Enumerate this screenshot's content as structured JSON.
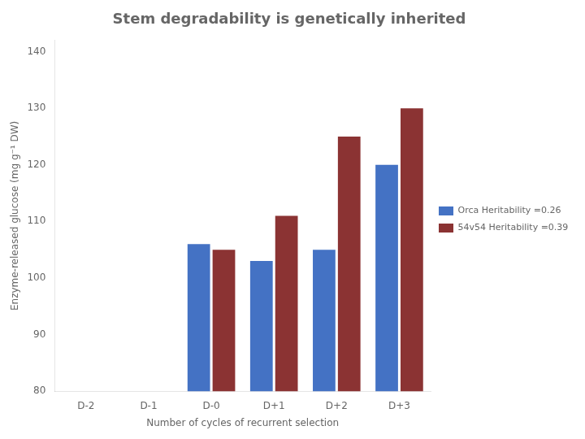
{
  "chart_data": {
    "type": "bar",
    "title": "Stem degradability is genetically inherited",
    "categories": [
      "D-2",
      "D-1",
      "D-0",
      "D+1",
      "D+2",
      "D+3"
    ],
    "series": [
      {
        "name": "Orca Heritability =0.26",
        "color": "#4472C4",
        "values": [
          null,
          null,
          106,
          103,
          105,
          120
        ]
      },
      {
        "name": "54v54 Heritability =0.39",
        "color": "#8B3333",
        "values": [
          null,
          null,
          105,
          111,
          125,
          130
        ]
      }
    ],
    "xlabel": "Number of cycles of recurrent selection",
    "ylabel": "Enzyme-released glucose (mg g⁻¹ DW)",
    "ylim": [
      80,
      142
    ],
    "yticks": [
      80,
      90,
      100,
      110,
      120,
      130,
      140
    ],
    "grid": false,
    "legend": "right"
  }
}
